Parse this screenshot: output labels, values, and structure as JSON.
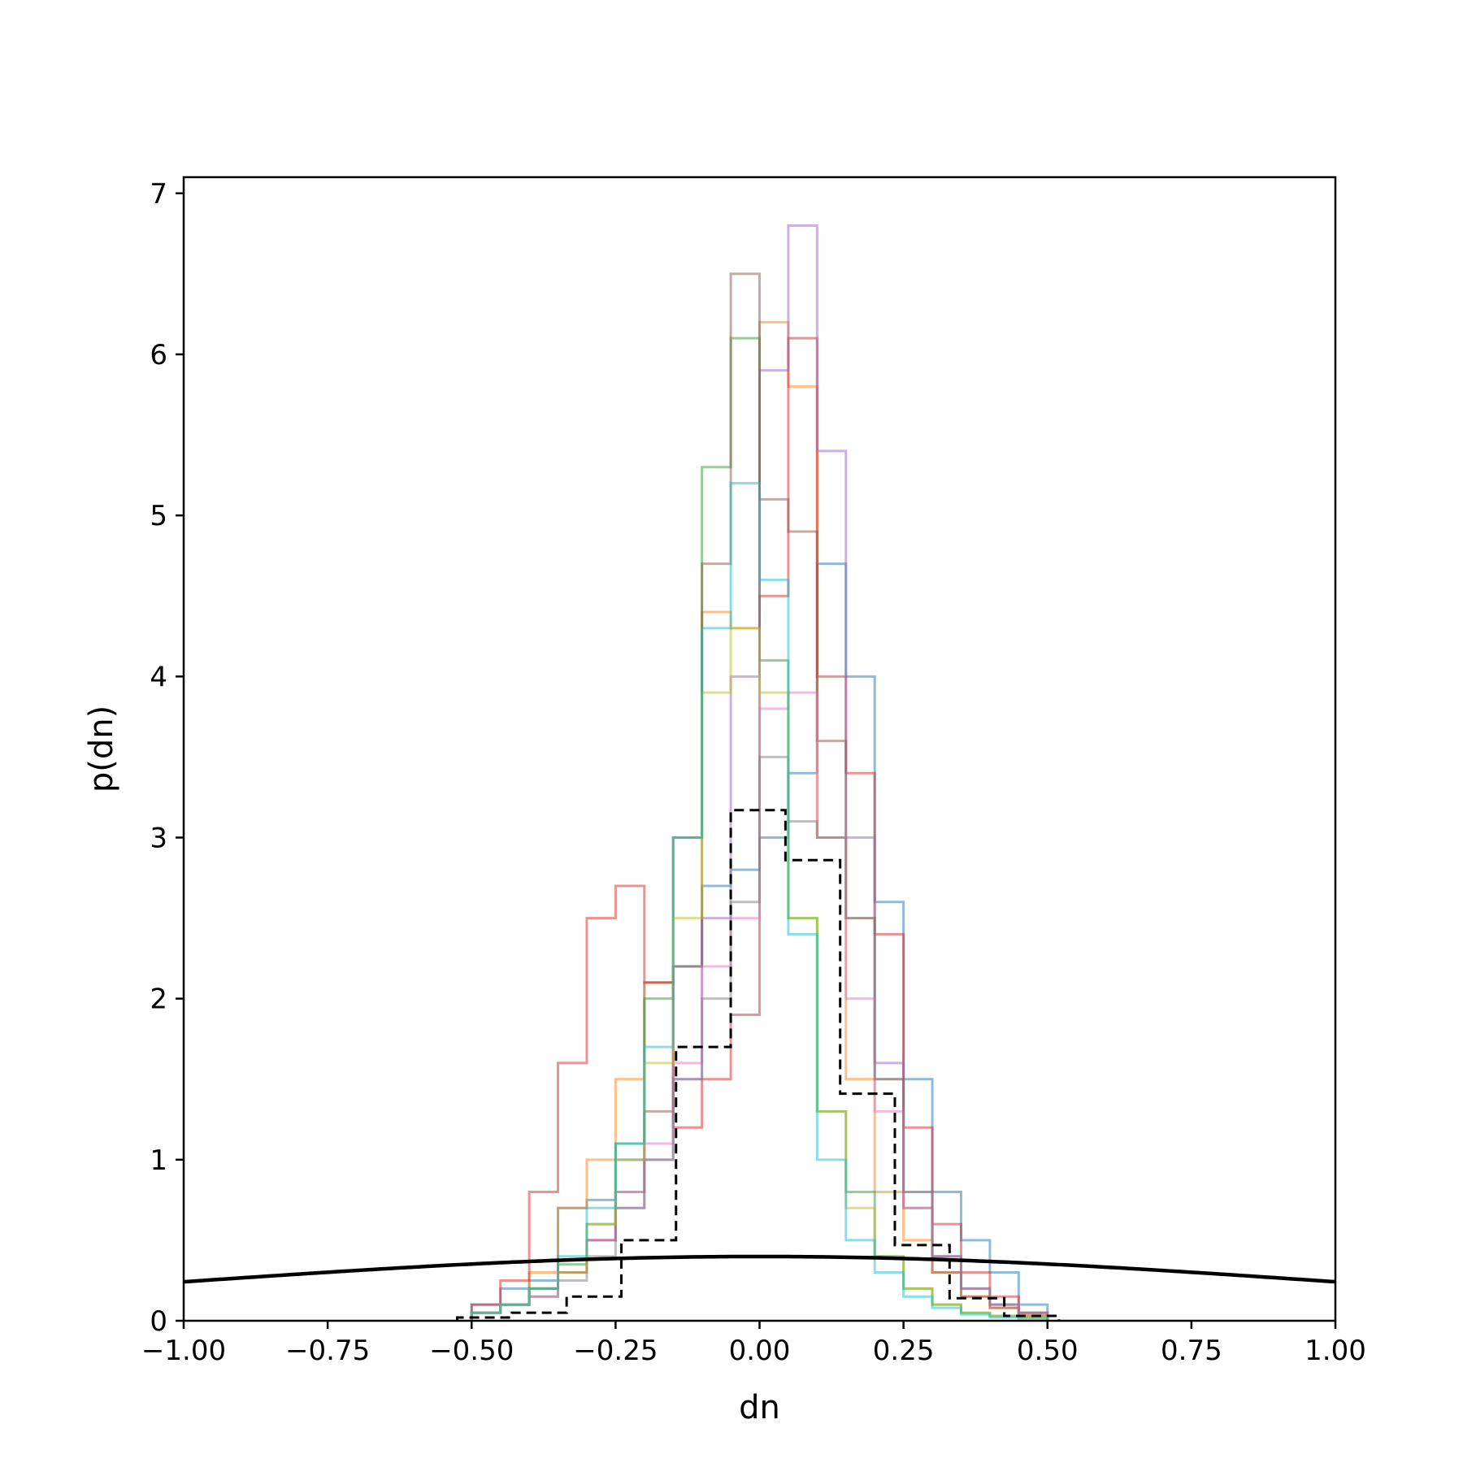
{
  "chart_data": {
    "type": "histogram",
    "xlabel": "dn",
    "ylabel": "p(dn)",
    "xlim": [
      -1.0,
      1.0
    ],
    "ylim": [
      0,
      7.1
    ],
    "xticks": [
      -1.0,
      -0.75,
      -0.5,
      -0.25,
      0.0,
      0.25,
      0.5,
      0.75,
      1.0
    ],
    "xtick_labels": [
      "−1.00",
      "−0.75",
      "−0.50",
      "−0.25",
      "0.00",
      "0.25",
      "0.50",
      "0.75",
      "1.00"
    ],
    "yticks": [
      0,
      1,
      2,
      3,
      4,
      5,
      6,
      7
    ],
    "ytick_labels": [
      "0",
      "1",
      "2",
      "3",
      "4",
      "5",
      "6",
      "7"
    ],
    "grid": false,
    "legend": "none",
    "series": [
      {
        "color": "#1f77b4",
        "edges": [
          -0.5,
          -0.45,
          -0.4,
          -0.35,
          -0.3,
          -0.25,
          -0.2,
          -0.15,
          -0.1,
          -0.05,
          0.0,
          0.05,
          0.1,
          0.15,
          0.2,
          0.25,
          0.3,
          0.35,
          0.4,
          0.45,
          0.5
        ],
        "heights": [
          0.1,
          0.2,
          0.25,
          0.7,
          0.75,
          1.0,
          2.1,
          2.2,
          2.7,
          2.8,
          3.0,
          3.4,
          4.7,
          4.0,
          2.6,
          1.5,
          0.8,
          0.5,
          0.3,
          0.1
        ]
      },
      {
        "color": "#ff7f0e",
        "edges": [
          -0.5,
          -0.45,
          -0.4,
          -0.35,
          -0.3,
          -0.25,
          -0.2,
          -0.15,
          -0.1,
          -0.05,
          0.0,
          0.05,
          0.1,
          0.15,
          0.2,
          0.25,
          0.3,
          0.35,
          0.4,
          0.45,
          0.5
        ],
        "heights": [
          0.05,
          0.1,
          0.3,
          0.7,
          1.0,
          1.5,
          2.1,
          3.0,
          4.4,
          4.3,
          6.2,
          5.8,
          3.0,
          1.5,
          0.8,
          0.5,
          0.3,
          0.15,
          0.08,
          0.04
        ]
      },
      {
        "color": "#2ca02c",
        "edges": [
          -0.5,
          -0.45,
          -0.4,
          -0.35,
          -0.3,
          -0.25,
          -0.2,
          -0.15,
          -0.1,
          -0.05,
          0.0,
          0.05,
          0.1,
          0.15,
          0.2,
          0.25,
          0.3,
          0.35,
          0.4,
          0.45,
          0.5
        ],
        "heights": [
          0.05,
          0.1,
          0.2,
          0.35,
          0.6,
          1.1,
          2.0,
          3.0,
          5.3,
          6.1,
          4.1,
          2.5,
          1.3,
          0.8,
          0.4,
          0.2,
          0.1,
          0.05,
          0.03,
          0.02
        ]
      },
      {
        "color": "#d62728",
        "edges": [
          -0.5,
          -0.45,
          -0.4,
          -0.35,
          -0.3,
          -0.25,
          -0.2,
          -0.15,
          -0.1,
          -0.05,
          0.0,
          0.05,
          0.1,
          0.15,
          0.2,
          0.25,
          0.3,
          0.35,
          0.4,
          0.45,
          0.5
        ],
        "heights": [
          0.1,
          0.25,
          0.8,
          1.6,
          2.5,
          2.7,
          2.1,
          1.2,
          1.5,
          1.9,
          4.5,
          6.1,
          4.0,
          3.4,
          2.4,
          1.2,
          0.6,
          0.3,
          0.15,
          0.05
        ]
      },
      {
        "color": "#9467bd",
        "edges": [
          -0.5,
          -0.45,
          -0.4,
          -0.35,
          -0.3,
          -0.25,
          -0.2,
          -0.15,
          -0.1,
          -0.05,
          0.0,
          0.05,
          0.1,
          0.15,
          0.2,
          0.25,
          0.3,
          0.35,
          0.4,
          0.45,
          0.5
        ],
        "heights": [
          0.05,
          0.1,
          0.2,
          0.3,
          0.5,
          0.7,
          1.0,
          1.5,
          2.5,
          4.0,
          5.9,
          6.8,
          5.4,
          3.0,
          1.6,
          0.8,
          0.4,
          0.2,
          0.1,
          0.05
        ]
      },
      {
        "color": "#8c564b",
        "edges": [
          -0.5,
          -0.45,
          -0.4,
          -0.35,
          -0.3,
          -0.25,
          -0.2,
          -0.15,
          -0.1,
          -0.05,
          0.0,
          0.05,
          0.1,
          0.15,
          0.2,
          0.25,
          0.3,
          0.35,
          0.4,
          0.45,
          0.5
        ],
        "heights": [
          0.05,
          0.1,
          0.2,
          0.3,
          0.5,
          0.8,
          1.3,
          2.2,
          4.7,
          6.5,
          5.1,
          4.9,
          3.6,
          2.5,
          1.5,
          0.7,
          0.3,
          0.15,
          0.08,
          0.03
        ]
      },
      {
        "color": "#e377c2",
        "edges": [
          -0.5,
          -0.45,
          -0.4,
          -0.35,
          -0.3,
          -0.25,
          -0.2,
          -0.15,
          -0.1,
          -0.05,
          0.0,
          0.05,
          0.1,
          0.15,
          0.2,
          0.25,
          0.3,
          0.35,
          0.4,
          0.45,
          0.5
        ],
        "heights": [
          0.05,
          0.1,
          0.15,
          0.3,
          0.5,
          0.8,
          1.1,
          1.6,
          2.2,
          2.5,
          3.8,
          3.9,
          3.0,
          2.0,
          1.3,
          0.7,
          0.4,
          0.2,
          0.1,
          0.05
        ]
      },
      {
        "color": "#7f7f7f",
        "edges": [
          -0.5,
          -0.45,
          -0.4,
          -0.35,
          -0.3,
          -0.25,
          -0.2,
          -0.15,
          -0.1,
          -0.05,
          0.0,
          0.05,
          0.1,
          0.15,
          0.2,
          0.25,
          0.3,
          0.35,
          0.4,
          0.45,
          0.5
        ],
        "heights": [
          0.05,
          0.1,
          0.15,
          0.25,
          0.4,
          0.7,
          1.0,
          1.5,
          2.0,
          2.6,
          3.5,
          3.1,
          3.0,
          2.5,
          1.5,
          0.8,
          0.4,
          0.2,
          0.1,
          0.05
        ]
      },
      {
        "color": "#bcbd22",
        "edges": [
          -0.5,
          -0.45,
          -0.4,
          -0.35,
          -0.3,
          -0.25,
          -0.2,
          -0.15,
          -0.1,
          -0.05,
          0.0,
          0.05,
          0.1,
          0.15,
          0.2,
          0.25,
          0.3,
          0.35,
          0.4,
          0.45,
          0.5
        ],
        "heights": [
          0.05,
          0.1,
          0.2,
          0.3,
          0.6,
          1.0,
          1.6,
          2.5,
          3.9,
          4.3,
          3.9,
          2.5,
          1.3,
          0.7,
          0.4,
          0.2,
          0.1,
          0.05,
          0.03,
          0.02
        ]
      },
      {
        "color": "#17becf",
        "edges": [
          -0.5,
          -0.45,
          -0.4,
          -0.35,
          -0.3,
          -0.25,
          -0.2,
          -0.15,
          -0.1,
          -0.05,
          0.0,
          0.05,
          0.1,
          0.15,
          0.2,
          0.25,
          0.3,
          0.35,
          0.4,
          0.45,
          0.5
        ],
        "heights": [
          0.05,
          0.1,
          0.2,
          0.4,
          0.7,
          1.1,
          1.7,
          3.0,
          4.3,
          5.2,
          4.6,
          2.4,
          1.0,
          0.5,
          0.3,
          0.15,
          0.08,
          0.04,
          0.02,
          0.01
        ]
      }
    ],
    "aggregate": {
      "color": "#000000",
      "linestyle": "dashed",
      "edges": [
        -0.525,
        -0.43,
        -0.335,
        -0.24,
        -0.145,
        -0.05,
        0.045,
        0.14,
        0.235,
        0.33,
        0.425,
        0.52
      ],
      "heights": [
        0.02,
        0.05,
        0.15,
        0.5,
        1.7,
        3.17,
        2.86,
        1.41,
        0.47,
        0.14,
        0.03
      ]
    },
    "prior_curve": {
      "type": "normal",
      "mean": 0.0,
      "std": 1.0,
      "color": "#000000"
    }
  }
}
